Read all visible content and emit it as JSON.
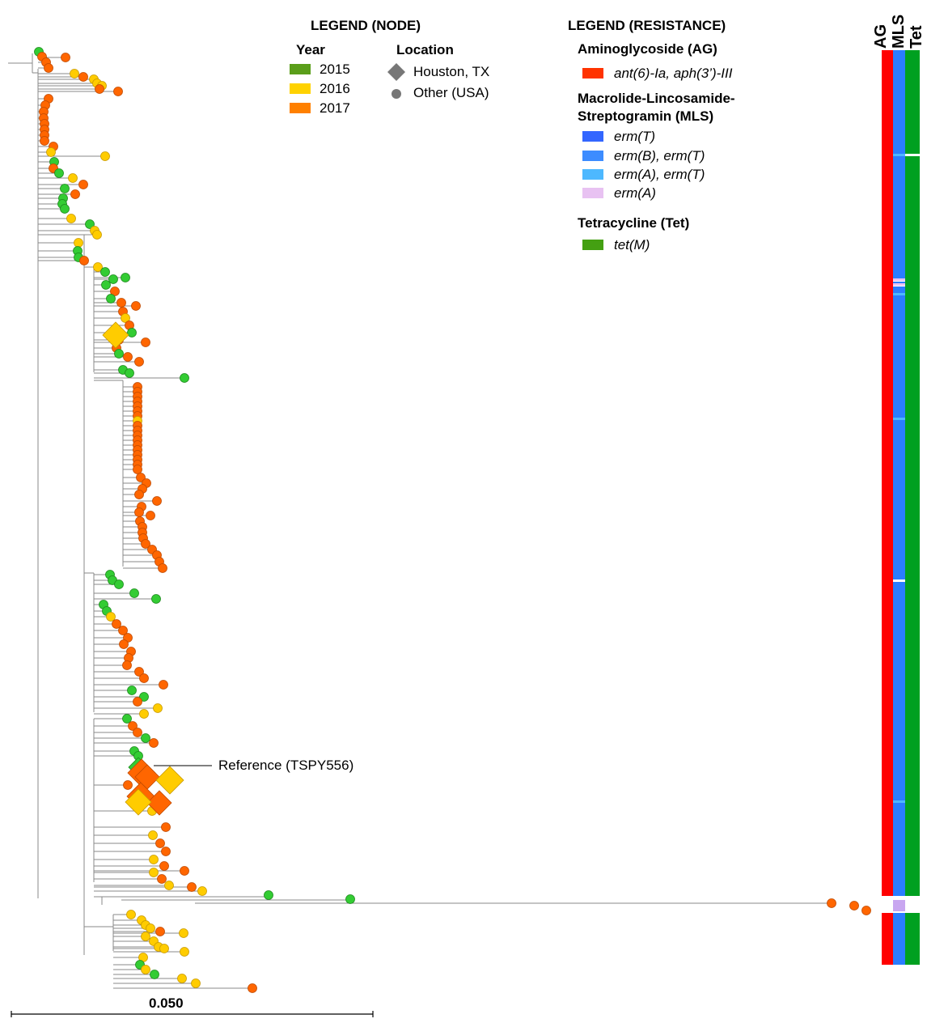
{
  "legend_node": {
    "title": "LEGEND (NODE)",
    "year_heading": "Year",
    "years": [
      {
        "label": "2015",
        "color": "#5a9e1a"
      },
      {
        "label": "2016",
        "color": "#ffd200"
      },
      {
        "label": "2017",
        "color": "#ff8000"
      }
    ],
    "location_heading": "Location",
    "locations": [
      {
        "label": "Houston, TX",
        "shape": "diamond-icon"
      },
      {
        "label": "Other (USA)",
        "shape": "circle-icon"
      }
    ]
  },
  "legend_resistance": {
    "title": "LEGEND (RESISTANCE)",
    "groups": [
      {
        "heading": "Aminoglycoside (AG)",
        "entries": [
          {
            "label": "ant(6)-Ia, aph(3’)-III",
            "color": "#ff3300"
          }
        ]
      },
      {
        "heading_line1": "Macrolide-Lincosamide-",
        "heading_line2": "Streptogramin (MLS)",
        "entries": [
          {
            "label": "erm(T)",
            "color": "#3366ff"
          },
          {
            "label": "erm(B), erm(T)",
            "color": "#3d8cff"
          },
          {
            "label": "erm(A), erm(T)",
            "color": "#4db8ff"
          },
          {
            "label": "erm(A)",
            "color": "#e8c2f2"
          }
        ]
      },
      {
        "heading": "Tetracycline (Tet)",
        "entries": [
          {
            "label": "tet(M)",
            "color": "#44a012"
          }
        ]
      }
    ]
  },
  "columns": {
    "ag": "AG",
    "mls": "MLS",
    "tet": "Tet"
  },
  "reference_label": "Reference (TSPY556)",
  "scale_bar_label": "0.050",
  "colors": {
    "ag": "#ff0000",
    "mls": "#2a7dff",
    "tet": "#00a020",
    "branch": "#888888",
    "y2015": "#33cc33",
    "y2016": "#ffcc00",
    "y2017": "#ff6600"
  }
}
